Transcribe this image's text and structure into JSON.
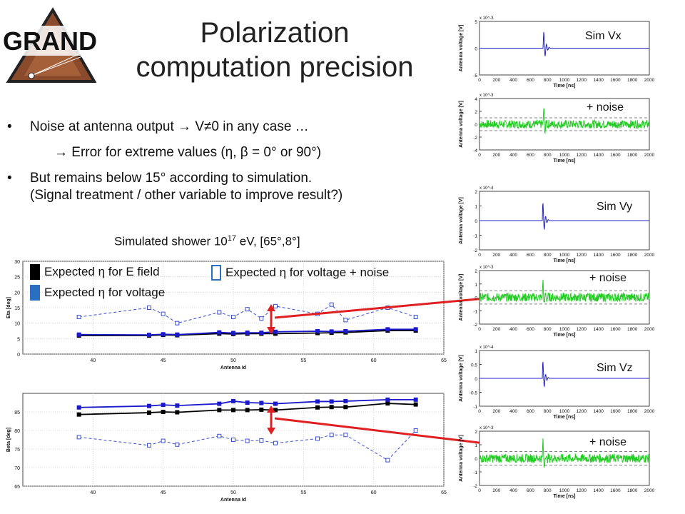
{
  "title": {
    "line1": "Polarization",
    "line2": "computation precision"
  },
  "logo": {
    "text": "GRAND"
  },
  "bullets": [
    {
      "text": "Noise at antenna output → V≠0 in any case …"
    },
    {
      "text": "→ Error for extreme values (η, β = 0° or 90°)"
    },
    {
      "text_line1": "But remains below 15° according to simulation.",
      "text_line2": "(Signal treatment / other variable to improve result?)"
    }
  ],
  "caption": {
    "prefix": "Simulated shower 10",
    "sup": "17",
    "suffix": " eV, [65°,8°]"
  },
  "legend": {
    "expected_e_field": "Expected η  for E field",
    "expected_voltage": "Expected η  for voltage",
    "expected_voltage_noise": "Expected η  for voltage + noise"
  },
  "colors": {
    "e_field": "#000000",
    "voltage": "#1a1acc",
    "voltage_noise": "#3a4fd0",
    "trace_clean": "#2222cc",
    "trace_noise": "#22cc22",
    "arrow": "#e02020"
  },
  "side_labels": {
    "vx": "Sim Vx",
    "vy": "Sim Vy",
    "vz": "Sim Vz",
    "noise1": "+ noise",
    "noise2": "+ noise",
    "noise3": "+ noise"
  },
  "chart_data": [
    {
      "type": "line",
      "title": "",
      "xlabel": "Antenna Id",
      "ylabel": "Eta [deg]",
      "xlim": [
        35,
        65
      ],
      "ylim": [
        0,
        30
      ],
      "xticks": [
        40,
        45,
        50,
        55,
        60,
        65
      ],
      "yticks": [
        0,
        5,
        10,
        15,
        20,
        25,
        30
      ],
      "x": [
        39,
        44,
        45,
        46,
        49,
        50,
        51,
        52,
        53,
        56,
        57,
        58,
        61,
        63
      ],
      "series": [
        {
          "name": "Expected η for E field",
          "style": "solid-black",
          "values": [
            6,
            6,
            6.2,
            6.1,
            6.6,
            6.5,
            6.6,
            6.6,
            6.6,
            6.8,
            6.9,
            7,
            7.6,
            7.6
          ]
        },
        {
          "name": "Expected η for voltage",
          "style": "solid-blue",
          "values": [
            6.3,
            6.2,
            6.4,
            6.3,
            7,
            6.8,
            6.9,
            6.9,
            7.2,
            7.4,
            7.3,
            7.4,
            8,
            8
          ]
        },
        {
          "name": "Expected η for voltage + noise",
          "style": "dashed-blue",
          "values": [
            12,
            15,
            13,
            10,
            13.5,
            12,
            14.5,
            11.5,
            15.5,
            13,
            16,
            11,
            15,
            12
          ]
        }
      ]
    },
    {
      "type": "line",
      "title": "",
      "xlabel": "Antenna Id",
      "ylabel": "Beta [deg]",
      "xlim": [
        35,
        65
      ],
      "ylim": [
        65,
        90
      ],
      "xticks": [
        40,
        45,
        50,
        55,
        60,
        65
      ],
      "yticks": [
        65,
        70,
        75,
        80,
        85
      ],
      "x": [
        39,
        44,
        45,
        46,
        49,
        50,
        51,
        52,
        53,
        56,
        57,
        58,
        61,
        63
      ],
      "series": [
        {
          "name": "Expected β for E field",
          "style": "solid-black",
          "values": [
            84.3,
            84.8,
            85,
            84.9,
            85.5,
            85.5,
            85.5,
            85.6,
            85.5,
            86.2,
            86.3,
            86.3,
            87.3,
            87
          ]
        },
        {
          "name": "Expected β for voltage",
          "style": "solid-blue",
          "values": [
            86.2,
            86.6,
            86.9,
            86.7,
            87.2,
            87.9,
            87.5,
            87.4,
            87.2,
            87.8,
            87.8,
            87.9,
            88.3,
            88.3
          ]
        },
        {
          "name": "Expected β for voltage + noise",
          "style": "dashed-blue",
          "values": [
            78.2,
            76,
            77.2,
            76.2,
            78.5,
            77.5,
            77.2,
            77.3,
            76.6,
            77.8,
            78.8,
            78.8,
            72,
            80
          ]
        }
      ]
    },
    {
      "type": "line",
      "name": "vx-clean",
      "xlabel": "Time [ns]",
      "ylabel": "Antenna voltage [V]",
      "scale": "x 10^-3",
      "xlim": [
        0,
        2000
      ],
      "ylim": [
        -5,
        5
      ],
      "xticks": [
        0,
        200,
        400,
        600,
        800,
        1000,
        1200,
        1400,
        1600,
        1800,
        2000
      ],
      "yticks": [
        -5,
        0,
        5
      ],
      "pulse_at": 750,
      "noise": false
    },
    {
      "type": "line",
      "name": "vx-noise",
      "xlabel": "Time [ns]",
      "ylabel": "Antenna voltage [V]",
      "scale": "x 10^-3",
      "xlim": [
        0,
        2000
      ],
      "ylim": [
        -4,
        4
      ],
      "xticks": [
        0,
        200,
        400,
        600,
        800,
        1000,
        1200,
        1400,
        1600,
        1800,
        2000
      ],
      "yticks": [
        -4,
        -2,
        0,
        2,
        4
      ],
      "pulse_at": 750,
      "noise": true
    },
    {
      "type": "line",
      "name": "vy-clean",
      "xlabel": "Time [ns]",
      "ylabel": "Antenna voltage [V]",
      "scale": "x 10^-4",
      "xlim": [
        0,
        2000
      ],
      "ylim": [
        -2,
        2
      ],
      "xticks": [
        0,
        200,
        400,
        600,
        800,
        1000,
        1200,
        1400,
        1600,
        1800,
        2000
      ],
      "yticks": [
        -2,
        -1,
        0,
        1,
        2
      ],
      "pulse_at": 740,
      "noise": false
    },
    {
      "type": "line",
      "name": "vy-noise",
      "xlabel": "Time [ns]",
      "ylabel": "Antenna voltage [V]",
      "scale": "x 10^-3",
      "xlim": [
        0,
        2000
      ],
      "ylim": [
        -2,
        2
      ],
      "xticks": [
        0,
        200,
        400,
        600,
        800,
        1000,
        1200,
        1400,
        1600,
        1800,
        2000
      ],
      "yticks": [
        -2,
        -1,
        0,
        1,
        2
      ],
      "pulse_at": 740,
      "noise": true
    },
    {
      "type": "line",
      "name": "vz-clean",
      "xlabel": "Time [ns]",
      "ylabel": "Antenna voltage [V]",
      "scale": "x 10^-4",
      "xlim": [
        0,
        2000
      ],
      "ylim": [
        -1,
        1
      ],
      "xticks": [
        0,
        200,
        400,
        600,
        800,
        1000,
        1200,
        1400,
        1600,
        1800,
        2000
      ],
      "yticks": [
        -1,
        -0.5,
        0,
        0.5,
        1
      ],
      "pulse_at": 740,
      "noise": false
    },
    {
      "type": "line",
      "name": "vz-noise",
      "xlabel": "Time [ns]",
      "ylabel": "Antenna voltage [V]",
      "scale": "x 10^-3",
      "xlim": [
        0,
        2000
      ],
      "ylim": [
        -2,
        2
      ],
      "xticks": [
        0,
        200,
        400,
        600,
        800,
        1000,
        1200,
        1400,
        1600,
        1800,
        2000
      ],
      "yticks": [
        -2,
        -1,
        0,
        1,
        2
      ],
      "pulse_at": 740,
      "noise": true
    }
  ]
}
